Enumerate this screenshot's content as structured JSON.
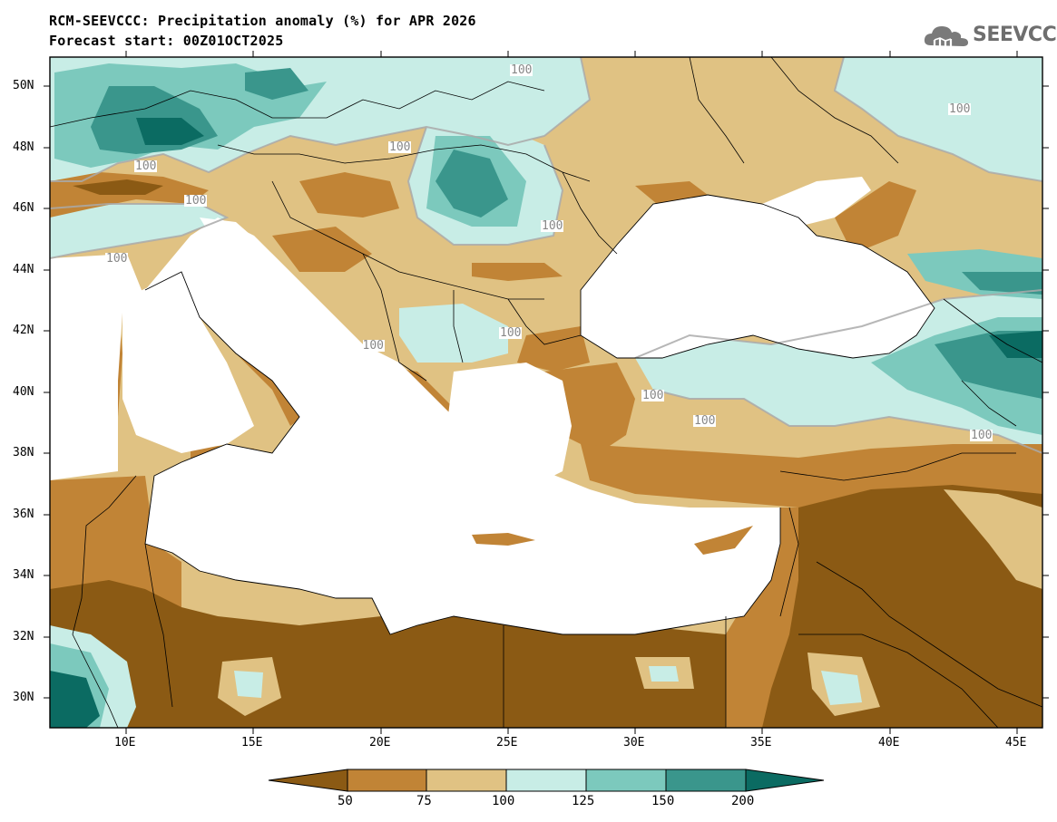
{
  "title": {
    "line1": "RCM-SEEVCCC: Precipitation anomaly (%) for APR 2026",
    "line2": "Forecast start: 00Z01OCT2025"
  },
  "logo": {
    "text": "SEEVCCC",
    "icon": "cloud-icon"
  },
  "map": {
    "lat_labels": [
      "50N",
      "48N",
      "46N",
      "44N",
      "42N",
      "40N",
      "38N",
      "36N",
      "34N",
      "32N",
      "30N"
    ],
    "lon_labels": [
      "10E",
      "15E",
      "20E",
      "25E",
      "30E",
      "35E",
      "40E",
      "45E"
    ],
    "lat_range": [
      29,
      51
    ],
    "lon_range": [
      7,
      46
    ],
    "contour_labels": [
      "100",
      "100",
      "100",
      "100",
      "100",
      "100",
      "100",
      "100",
      "100",
      "100",
      "100",
      "100"
    ]
  },
  "colorbar": {
    "ticks": [
      "50",
      "75",
      "100",
      "125",
      "150",
      "200"
    ],
    "colors": [
      "#8b5a14",
      "#c18436",
      "#e0c283",
      "#c8ede6",
      "#7cc9bd",
      "#3a968c",
      "#0b6b62"
    ]
  },
  "palette": {
    "very_dry": "#8b5a14",
    "dry": "#c18436",
    "slightly_dry": "#e0c283",
    "slightly_wet": "#c8ede6",
    "wet": "#7cc9bd",
    "very_wet": "#3a968c",
    "extreme_wet": "#0b6b62",
    "sea": "#ffffff"
  }
}
